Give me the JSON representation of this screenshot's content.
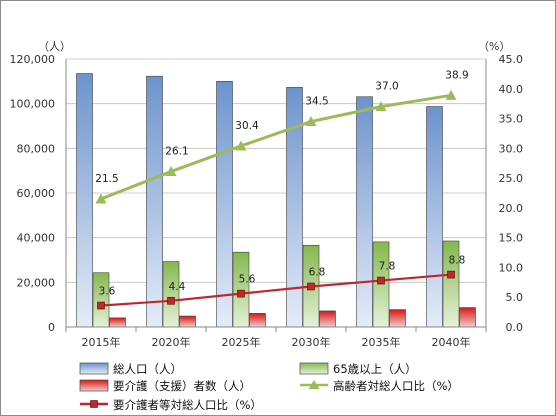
{
  "chart_data": {
    "type": "bar",
    "categories": [
      "2015年",
      "2020年",
      "2025年",
      "2030年",
      "2035年",
      "2040年"
    ],
    "left_axis": {
      "unit_label": "（人）",
      "ylim": [
        0,
        120000
      ],
      "ticks": [
        "0",
        "20,000",
        "40,000",
        "60,000",
        "80,000",
        "100,000",
        "120,000"
      ]
    },
    "right_axis": {
      "unit_label": "（%）",
      "ylim": [
        0,
        45
      ],
      "ticks": [
        "0.0",
        "5.0",
        "10.0",
        "15.0",
        "20.0",
        "25.0",
        "30.0",
        "35.0",
        "40.0",
        "45.0"
      ]
    },
    "bar_series": [
      {
        "name": "総人口（人）",
        "values": [
          113500,
          112300,
          110000,
          107300,
          103100,
          98700
        ],
        "color": "#6f95cf"
      },
      {
        "name": "65歳以上（人）",
        "values": [
          24300,
          29300,
          33500,
          36600,
          38100,
          38500
        ],
        "color": "#8fbe5a"
      },
      {
        "name": "要介護（支援）者数（人）",
        "values": [
          4100,
          4900,
          6100,
          7200,
          7800,
          8700
        ],
        "color": "#d92020"
      }
    ],
    "line_series": [
      {
        "name": "高齢者対総人口比（%）",
        "values": [
          21.5,
          26.1,
          30.4,
          34.5,
          37.0,
          38.9
        ],
        "labels": [
          "21.5",
          "26.1",
          "30.4",
          "34.5",
          "37.0",
          "38.9"
        ],
        "color": "#9bbb59"
      },
      {
        "name": "要介護者等対総人口比（%）",
        "values": [
          3.6,
          4.4,
          5.6,
          6.8,
          7.8,
          8.8
        ],
        "labels": [
          "3.6",
          "4.4",
          "5.6",
          "6.8",
          "7.8",
          "8.8"
        ],
        "color": "#c0272d"
      }
    ],
    "grid": true,
    "legend_position": "bottom"
  }
}
